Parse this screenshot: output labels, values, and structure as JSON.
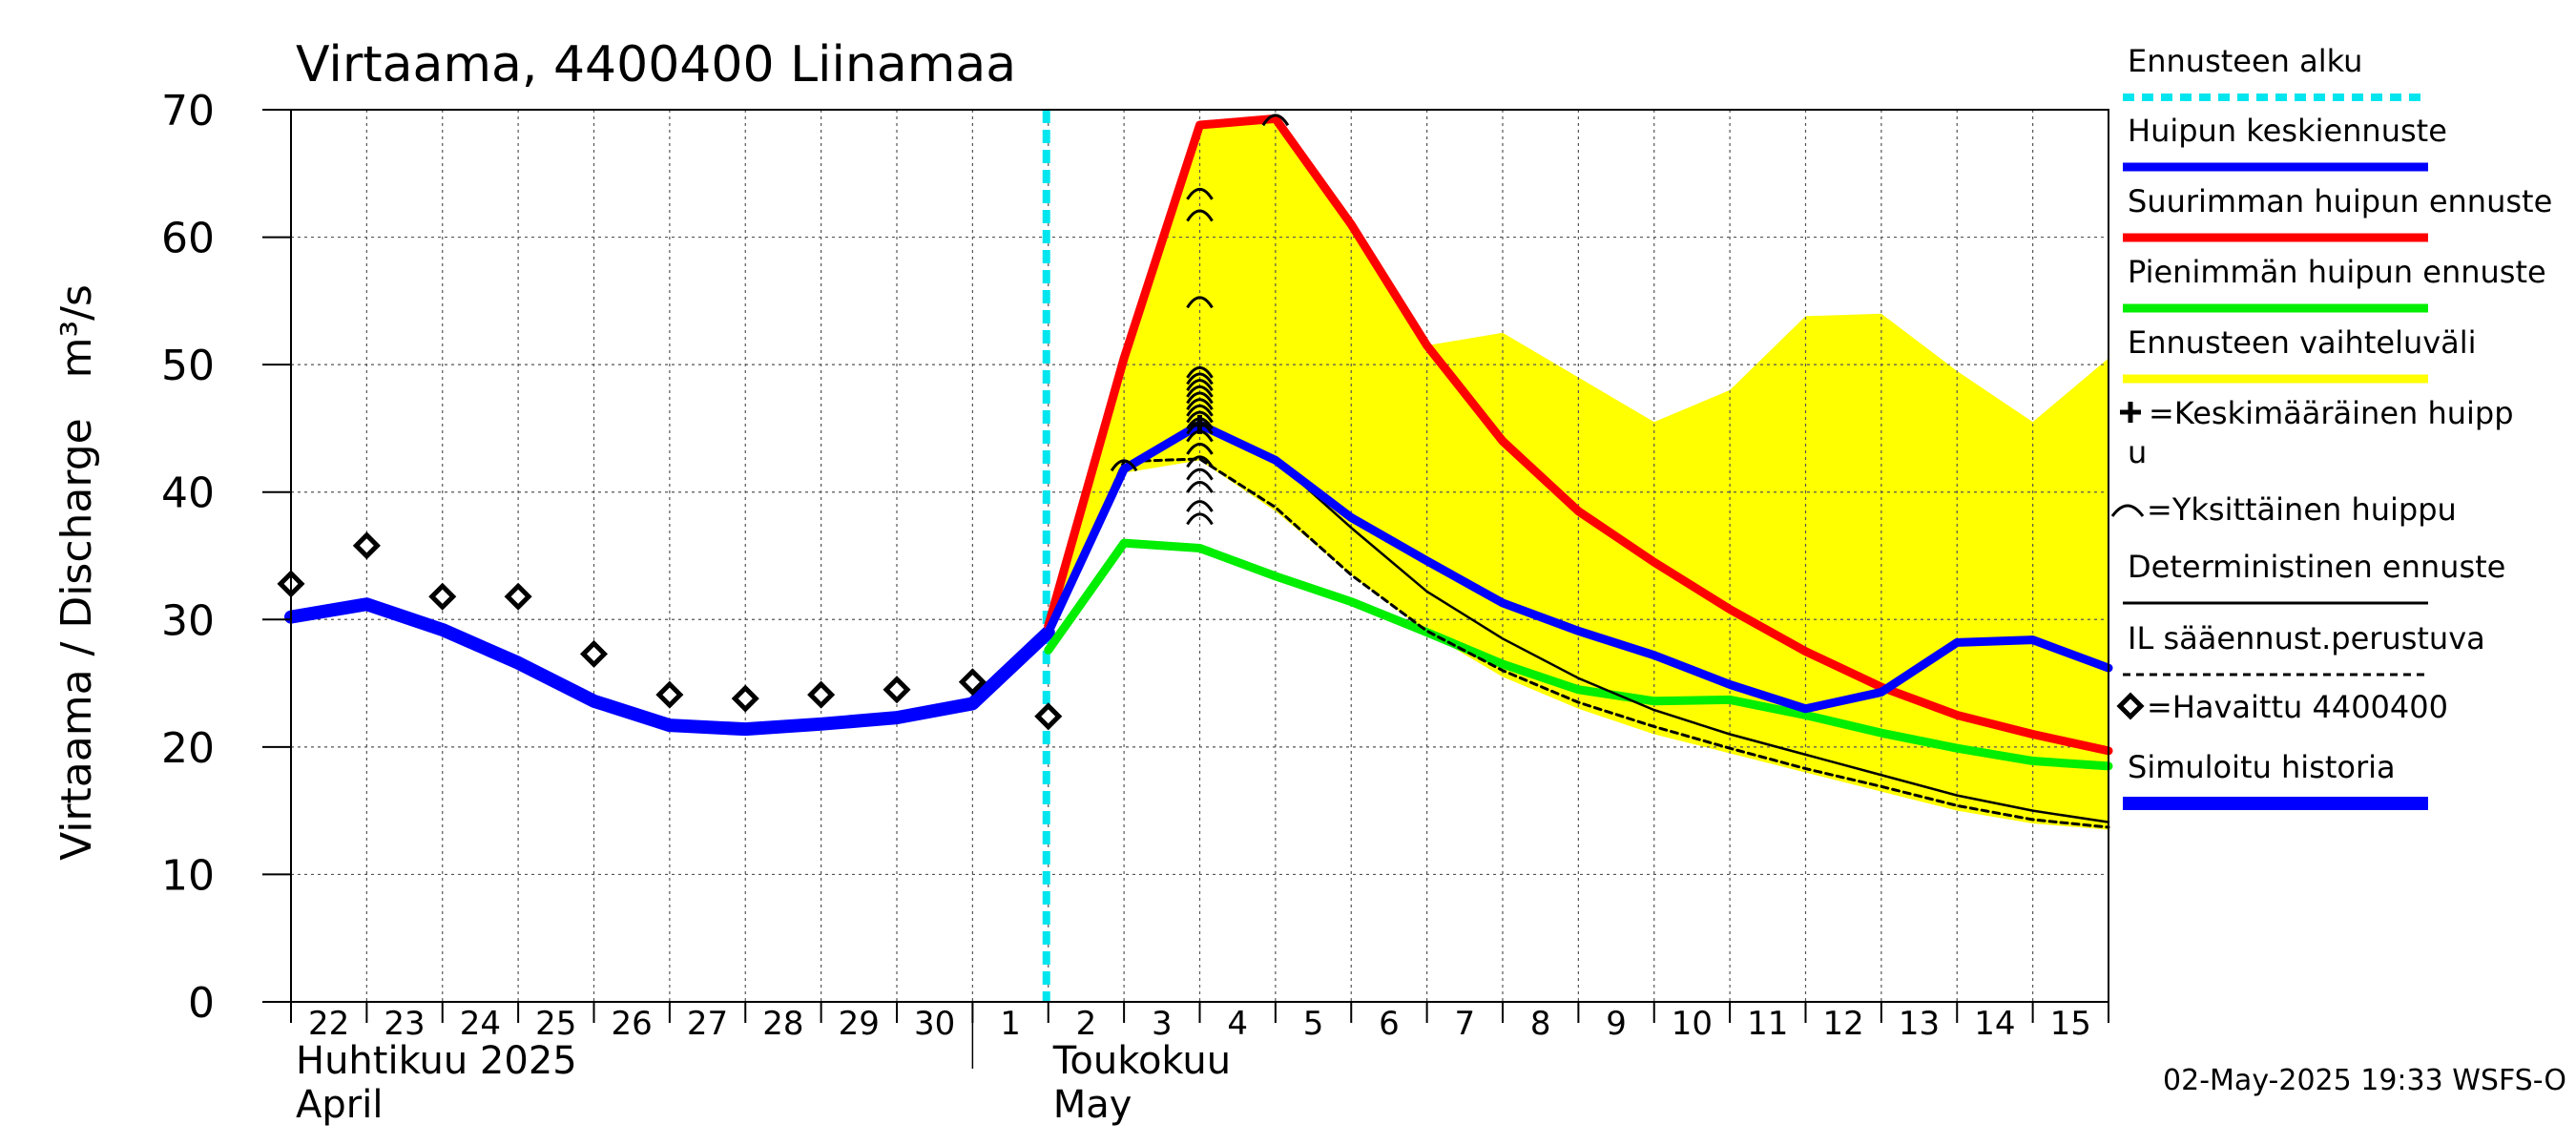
{
  "chart_data": {
    "type": "line",
    "title": "Virtaama, 4400400 Liinamaa",
    "ylabel": "Virtaama / Discharge   m³/s",
    "ylim": [
      0,
      70
    ],
    "yticks": [
      0,
      10,
      20,
      30,
      40,
      50,
      60,
      70
    ],
    "xlim": [
      "2025-04-22",
      "2025-05-16"
    ],
    "x_tick_labels": [
      "22",
      "23",
      "24",
      "25",
      "26",
      "27",
      "28",
      "29",
      "30",
      "1",
      "2",
      "3",
      "4",
      "5",
      "6",
      "7",
      "8",
      "9",
      "10",
      "11",
      "12",
      "13",
      "14",
      "15"
    ],
    "month_labels": [
      {
        "at": "2025-04-22",
        "lines": [
          "Huhtikuu  2025",
          "April"
        ]
      },
      {
        "at": "2025-05-02",
        "lines": [
          "Toukokuu",
          "May"
        ]
      }
    ],
    "grid": true,
    "legend_position": "right",
    "forecast_start": "2025-05-02",
    "timestamp": "02-May-2025 19:33 WSFS-O",
    "series": [
      {
        "name": "Ennusteen vaihteluväli",
        "style": "band",
        "color": "#ffff00",
        "x": [
          "2025-05-02",
          "2025-05-03",
          "2025-05-04",
          "2025-05-05",
          "2025-05-06",
          "2025-05-07",
          "2025-05-08",
          "2025-05-09",
          "2025-05-10",
          "2025-05-11",
          "2025-05-12",
          "2025-05-13",
          "2025-05-14",
          "2025-05-15",
          "2025-05-16"
        ],
        "upper": [
          30,
          50.5,
          68.8,
          69.3,
          61,
          51.5,
          52.5,
          49,
          45.5,
          48,
          53.8,
          54,
          49.5,
          45.5,
          50.5
        ],
        "lower": [
          29,
          41.5,
          42.5,
          38.5,
          33.5,
          29,
          25.5,
          23,
          21,
          19.5,
          18,
          16.5,
          15,
          14,
          13.5
        ]
      },
      {
        "name": "Simuloitu historia",
        "style": "line",
        "color": "#0000ff",
        "x": [
          "2025-04-22",
          "2025-04-23",
          "2025-04-24",
          "2025-04-25",
          "2025-04-26",
          "2025-04-27",
          "2025-04-28",
          "2025-04-29",
          "2025-04-30",
          "2025-05-01",
          "2025-05-02"
        ],
        "values": [
          30.2,
          31.2,
          29.2,
          26.6,
          23.6,
          21.7,
          21.4,
          21.8,
          22.3,
          23.4,
          29.0
        ]
      },
      {
        "name": "Suurimman huipun ennuste",
        "style": "line",
        "color": "#ff0000",
        "x": [
          "2025-05-02",
          "2025-05-03",
          "2025-05-04",
          "2025-05-05",
          "2025-05-06",
          "2025-05-07",
          "2025-05-08",
          "2025-05-09",
          "2025-05-10",
          "2025-05-11",
          "2025-05-12",
          "2025-05-13",
          "2025-05-14",
          "2025-05-15",
          "2025-05-16"
        ],
        "values": [
          29.5,
          50.5,
          68.8,
          69.3,
          61,
          51.5,
          44,
          38.5,
          34.5,
          30.8,
          27.5,
          24.7,
          22.5,
          21,
          19.7
        ]
      },
      {
        "name": "Pienimmän huipun ennuste",
        "style": "line",
        "color": "#00ee00",
        "x": [
          "2025-05-02",
          "2025-05-03",
          "2025-05-04",
          "2025-05-05",
          "2025-05-06",
          "2025-05-07",
          "2025-05-08",
          "2025-05-09",
          "2025-05-10",
          "2025-05-11",
          "2025-05-12",
          "2025-05-13",
          "2025-05-14",
          "2025-05-15",
          "2025-05-16"
        ],
        "values": [
          27.6,
          36,
          35.6,
          33.4,
          31.4,
          29.0,
          26.5,
          24.5,
          23.6,
          23.7,
          22.5,
          21.1,
          19.9,
          18.9,
          18.5
        ]
      },
      {
        "name": "Huipun keskiennuste",
        "style": "line",
        "color": "#0000ff",
        "x": [
          "2025-05-02",
          "2025-05-03",
          "2025-05-04",
          "2025-05-05",
          "2025-05-06",
          "2025-05-07",
          "2025-05-08",
          "2025-05-09",
          "2025-05-10",
          "2025-05-11",
          "2025-05-12",
          "2025-05-13",
          "2025-05-14",
          "2025-05-15",
          "2025-05-16"
        ],
        "values": [
          29.0,
          41.8,
          45.3,
          42.5,
          38,
          34.6,
          31.3,
          29.1,
          27.2,
          24.9,
          23.0,
          24.3,
          28.2,
          28.4,
          26.2
        ]
      },
      {
        "name": "Deterministinen ennuste",
        "style": "line",
        "color": "#000000",
        "x": [
          "2025-05-02",
          "2025-05-03",
          "2025-05-04",
          "2025-05-05",
          "2025-05-06",
          "2025-05-07",
          "2025-05-08",
          "2025-05-09",
          "2025-05-10",
          "2025-05-11",
          "2025-05-12",
          "2025-05-13",
          "2025-05-14",
          "2025-05-15",
          "2025-05-16"
        ],
        "values": [
          29.2,
          42,
          45.3,
          42.5,
          37.2,
          32.2,
          28.5,
          25.4,
          22.9,
          21,
          19.4,
          17.8,
          16.2,
          15.0,
          14.1
        ]
      },
      {
        "name": "IL sääennust.perustuva",
        "style": "dashed",
        "color": "#000000",
        "x": [
          "2025-05-02",
          "2025-05-03",
          "2025-05-04",
          "2025-05-05",
          "2025-05-06",
          "2025-05-07",
          "2025-05-08",
          "2025-05-09",
          "2025-05-10",
          "2025-05-11",
          "2025-05-12",
          "2025-05-13",
          "2025-05-14",
          "2025-05-15",
          "2025-05-16"
        ],
        "values": [
          29.0,
          42.4,
          42.6,
          38.8,
          33.5,
          29.1,
          26.0,
          23.5,
          21.6,
          19.9,
          18.3,
          16.9,
          15.4,
          14.3,
          13.7
        ]
      },
      {
        "name": "Havaittu 4400400",
        "style": "diamond",
        "color": "#000000",
        "x": [
          "2025-04-22",
          "2025-04-23",
          "2025-04-24",
          "2025-04-25",
          "2025-04-26",
          "2025-04-27",
          "2025-04-28",
          "2025-04-29",
          "2025-04-30",
          "2025-05-01",
          "2025-05-02"
        ],
        "values": [
          32.8,
          35.8,
          31.8,
          31.8,
          27.3,
          24.1,
          23.8,
          24.1,
          24.5,
          25.1,
          22.4
        ]
      },
      {
        "name": "Yksittäinen huippu",
        "style": "arc",
        "color": "#000000",
        "x": [
          "2025-05-03",
          "2025-05-04",
          "2025-05-04",
          "2025-05-04",
          "2025-05-04",
          "2025-05-04",
          "2025-05-04",
          "2025-05-04",
          "2025-05-04",
          "2025-05-04",
          "2025-05-04",
          "2025-05-04",
          "2025-05-04",
          "2025-05-04",
          "2025-05-04",
          "2025-05-04",
          "2025-05-04",
          "2025-05-04",
          "2025-05-04",
          "2025-05-04",
          "2025-05-04",
          "2025-05-05"
        ],
        "values": [
          42.2,
          63.5,
          61.8,
          55,
          49.5,
          49,
          48.5,
          48,
          47.5,
          47,
          46.5,
          46,
          45.5,
          45.1,
          44.5,
          43.5,
          42.5,
          41.5,
          40.5,
          39,
          38,
          69.3
        ]
      },
      {
        "name": "Keskimääräinen huippu",
        "style": "plus",
        "color": "#000000",
        "x": [
          "2025-05-04"
        ],
        "values": [
          45.3
        ]
      }
    ],
    "legend": [
      {
        "label": "Ennusteen alku",
        "kind": "line",
        "color": "#00e5ee",
        "width": 8,
        "dash": "12 8"
      },
      {
        "label": "Huipun keskiennuste",
        "kind": "line",
        "color": "#0000ff",
        "width": 9
      },
      {
        "label": "Suurimman huipun ennuste",
        "kind": "line",
        "color": "#ff0000",
        "width": 9
      },
      {
        "label": "Pienimmän huipun ennuste",
        "kind": "line",
        "color": "#00ee00",
        "width": 9
      },
      {
        "label": "Ennusteen vaihteluväli",
        "kind": "line",
        "color": "#ffff00",
        "width": 9
      },
      {
        "label": "=Keskimääräinen huipp",
        "label2": "u",
        "kind": "plus",
        "color": "#000000"
      },
      {
        "label": "=Yksittäinen huippu",
        "kind": "arc",
        "color": "#000000"
      },
      {
        "label": "Deterministinen ennuste",
        "kind": "line",
        "color": "#000000",
        "width": 3
      },
      {
        "label": "IL sääennust.perustuva",
        "kind": "line",
        "color": "#000000",
        "width": 3,
        "dash": "8 6"
      },
      {
        "label": "=Havaittu 4400400",
        "kind": "diamond",
        "color": "#000000"
      },
      {
        "label": "Simuloitu historia",
        "kind": "line",
        "color": "#0000ff",
        "width": 14
      }
    ]
  }
}
